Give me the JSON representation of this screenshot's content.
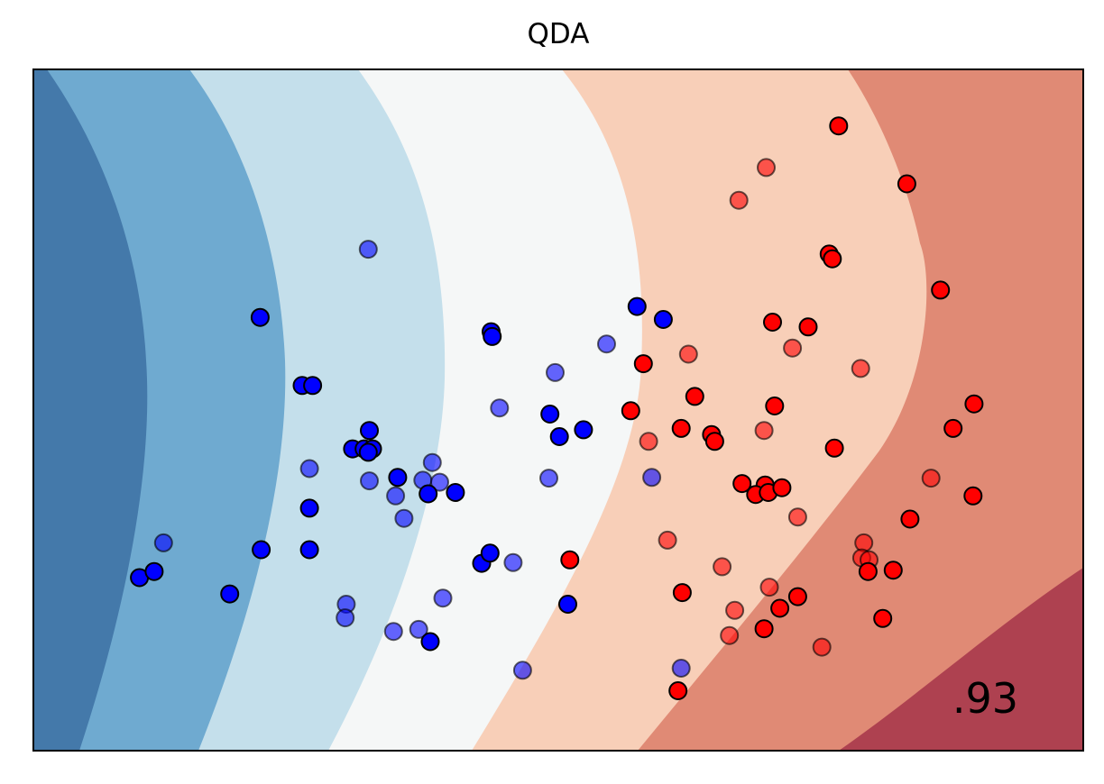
{
  "chart_data": {
    "type": "scatter",
    "title": "QDA",
    "xlabel": "",
    "ylabel": "",
    "score_text": ".93",
    "xlim": [
      0,
      100
    ],
    "ylim": [
      0,
      100
    ],
    "ticks": "none",
    "grid": false,
    "legend": "none",
    "background": {
      "kind": "decision-contours",
      "palette": "RdBu",
      "bands": [
        {
          "color": "#4479aa"
        },
        {
          "color": "#6faad0"
        },
        {
          "color": "#c4dfeb"
        },
        {
          "color": "#f5f7f7"
        },
        {
          "color": "#f8cfb8"
        },
        {
          "color": "#e08a75"
        },
        {
          "color": "#ae4150"
        }
      ]
    },
    "series": [
      {
        "class": "blue",
        "subset": "train",
        "color": "#0000ff",
        "opacity": 1.0,
        "points": [
          [
            10.1,
            25.4
          ],
          [
            11.5,
            26.3
          ],
          [
            18.7,
            23.0
          ],
          [
            21.6,
            63.6
          ],
          [
            21.7,
            29.5
          ],
          [
            25.6,
            53.6
          ],
          [
            26.6,
            53.6
          ],
          [
            26.3,
            35.6
          ],
          [
            26.3,
            29.5
          ],
          [
            30.4,
            44.3
          ],
          [
            31.5,
            44.3
          ],
          [
            32.0,
            47.0
          ],
          [
            32.3,
            44.3
          ],
          [
            31.9,
            43.8
          ],
          [
            34.7,
            40.1
          ],
          [
            37.6,
            37.7
          ],
          [
            40.2,
            37.9
          ],
          [
            37.8,
            16.0
          ],
          [
            42.7,
            27.5
          ],
          [
            43.5,
            29.0
          ],
          [
            43.6,
            61.5
          ],
          [
            43.7,
            60.8
          ],
          [
            49.2,
            49.4
          ],
          [
            50.1,
            46.1
          ],
          [
            52.4,
            47.1
          ],
          [
            50.9,
            21.5
          ],
          [
            57.5,
            65.2
          ],
          [
            60.0,
            63.3
          ]
        ]
      },
      {
        "class": "blue",
        "subset": "test",
        "color": "#0000ff",
        "opacity": 0.6,
        "points": [
          [
            12.4,
            30.5
          ],
          [
            26.3,
            41.4
          ],
          [
            31.9,
            73.6
          ],
          [
            32.0,
            39.6
          ],
          [
            34.5,
            37.4
          ],
          [
            37.1,
            39.7
          ],
          [
            35.3,
            34.1
          ],
          [
            38.0,
            42.3
          ],
          [
            38.7,
            39.4
          ],
          [
            29.8,
            21.5
          ],
          [
            29.7,
            19.5
          ],
          [
            34.3,
            17.5
          ],
          [
            36.7,
            17.8
          ],
          [
            39.0,
            22.4
          ],
          [
            45.7,
            27.6
          ],
          [
            44.4,
            50.3
          ],
          [
            49.7,
            55.5
          ],
          [
            49.1,
            40.0
          ],
          [
            54.6,
            59.7
          ],
          [
            46.6,
            11.8
          ],
          [
            58.9,
            40.1
          ],
          [
            61.7,
            12.1
          ]
        ]
      },
      {
        "class": "red",
        "subset": "train",
        "color": "#ff0000",
        "opacity": 1.0,
        "points": [
          [
            76.7,
            91.7
          ],
          [
            83.2,
            83.2
          ],
          [
            75.8,
            72.9
          ],
          [
            76.1,
            72.2
          ],
          [
            86.4,
            67.6
          ],
          [
            70.4,
            62.9
          ],
          [
            73.8,
            62.2
          ],
          [
            58.1,
            56.8
          ],
          [
            56.9,
            49.9
          ],
          [
            61.7,
            47.3
          ],
          [
            63.0,
            52.0
          ],
          [
            64.6,
            46.4
          ],
          [
            64.9,
            45.4
          ],
          [
            70.6,
            50.6
          ],
          [
            69.7,
            39.0
          ],
          [
            67.5,
            39.2
          ],
          [
            68.8,
            37.6
          ],
          [
            70.0,
            37.9
          ],
          [
            71.3,
            38.6
          ],
          [
            76.3,
            44.4
          ],
          [
            89.6,
            50.9
          ],
          [
            87.6,
            47.3
          ],
          [
            89.5,
            37.4
          ],
          [
            83.5,
            34.0
          ],
          [
            79.5,
            26.3
          ],
          [
            81.9,
            26.5
          ],
          [
            72.8,
            22.6
          ],
          [
            71.1,
            20.9
          ],
          [
            69.6,
            17.9
          ],
          [
            80.9,
            19.4
          ],
          [
            61.8,
            23.2
          ],
          [
            51.1,
            28.0
          ],
          [
            61.4,
            8.8
          ]
        ]
      },
      {
        "class": "red",
        "subset": "test",
        "color": "#ff0000",
        "opacity": 0.6,
        "points": [
          [
            69.8,
            85.6
          ],
          [
            67.2,
            80.8
          ],
          [
            62.4,
            58.2
          ],
          [
            72.3,
            59.1
          ],
          [
            78.8,
            56.1
          ],
          [
            58.6,
            45.4
          ],
          [
            69.6,
            47.0
          ],
          [
            85.5,
            40.0
          ],
          [
            72.8,
            34.3
          ],
          [
            60.4,
            30.9
          ],
          [
            65.6,
            27.0
          ],
          [
            79.1,
            30.5
          ],
          [
            78.9,
            28.3
          ],
          [
            79.6,
            28.0
          ],
          [
            66.8,
            20.6
          ],
          [
            66.3,
            16.9
          ],
          [
            70.1,
            24.0
          ],
          [
            75.1,
            15.2
          ]
        ]
      }
    ]
  }
}
